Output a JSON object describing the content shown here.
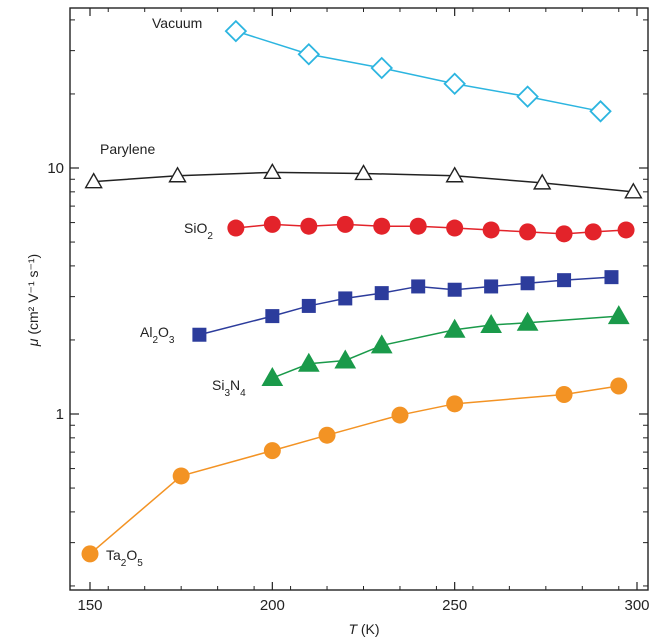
{
  "chart_data": {
    "type": "line",
    "xlabel": "T (K)",
    "ylabel": "μ (cm² V⁻¹ s⁻¹)",
    "xlim": [
      145,
      302
    ],
    "ylim": [
      0.2,
      45
    ],
    "yscale": "log",
    "x_ticks": [
      150,
      200,
      250,
      300
    ],
    "y_ticks": [
      1,
      10
    ],
    "grid": false,
    "series": [
      {
        "name": "Vacuum",
        "color": "#2cb5e0",
        "marker": "open-diamond",
        "x": [
          190,
          210,
          230,
          250,
          270,
          290
        ],
        "y": [
          36,
          29,
          25.5,
          22,
          19.5,
          17
        ]
      },
      {
        "name": "Parylene",
        "color": "#222222",
        "marker": "open-triangle",
        "x": [
          151,
          174,
          200,
          225,
          250,
          274,
          299
        ],
        "y": [
          8.8,
          9.3,
          9.6,
          9.5,
          9.3,
          8.7,
          8.0
        ]
      },
      {
        "name": "SiO2",
        "color": "#e3232a",
        "marker": "filled-circle",
        "x": [
          190,
          200,
          210,
          220,
          230,
          240,
          250,
          260,
          270,
          280,
          288,
          297
        ],
        "y": [
          5.7,
          5.9,
          5.8,
          5.9,
          5.8,
          5.8,
          5.7,
          5.6,
          5.5,
          5.4,
          5.5,
          5.6
        ]
      },
      {
        "name": "Al2O3",
        "color": "#2c3c9c",
        "marker": "filled-square",
        "x": [
          180,
          200,
          210,
          220,
          230,
          240,
          250,
          260,
          270,
          280,
          293
        ],
        "y": [
          2.1,
          2.5,
          2.75,
          2.95,
          3.1,
          3.3,
          3.2,
          3.3,
          3.4,
          3.5,
          3.6
        ]
      },
      {
        "name": "Si3N4",
        "color": "#1a9a4a",
        "marker": "filled-triangle",
        "x": [
          200,
          210,
          220,
          230,
          250,
          260,
          270,
          295
        ],
        "y": [
          1.4,
          1.6,
          1.65,
          1.9,
          2.2,
          2.3,
          2.35,
          2.5
        ]
      },
      {
        "name": "Ta2O5",
        "color": "#f39324",
        "marker": "filled-circle",
        "x": [
          150,
          175,
          200,
          215,
          235,
          250,
          280,
          295
        ],
        "y": [
          0.27,
          0.56,
          0.71,
          0.82,
          0.99,
          1.1,
          1.2,
          1.3
        ]
      }
    ]
  }
}
